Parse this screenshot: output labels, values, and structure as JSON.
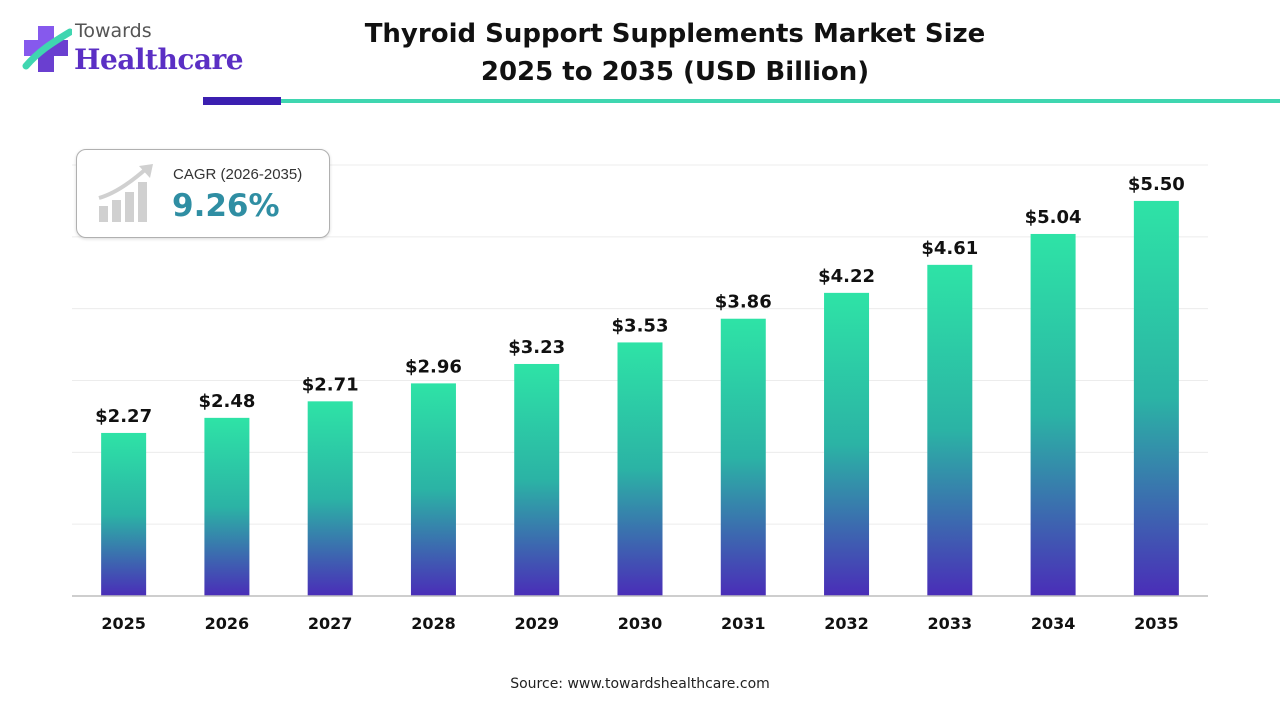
{
  "brand": {
    "line1": "Towards",
    "line2": "Healthcare"
  },
  "title_line1": "Thyroid Support Supplements Market Size",
  "title_line2": "2025 to 2035 (USD Billion)",
  "cagr": {
    "label": "CAGR (2026-2035)",
    "value": "9.26%"
  },
  "source": "Source: www.towardshealthcare.com",
  "colors": {
    "bar_top": "#2ee3a6",
    "bar_mid": "#2bb3a5",
    "bar_bottom": "#4a2db8",
    "brand_purple": "#5b2fc4",
    "accent_teal": "#3fd6b0",
    "cagr_text": "#2f8ea3"
  },
  "chart_data": {
    "type": "bar",
    "categories": [
      "2025",
      "2026",
      "2027",
      "2028",
      "2029",
      "2030",
      "2031",
      "2032",
      "2033",
      "2034",
      "2035"
    ],
    "values": [
      2.27,
      2.48,
      2.71,
      2.96,
      3.23,
      3.53,
      3.86,
      4.22,
      4.61,
      5.04,
      5.5
    ],
    "data_labels": [
      "$2.27",
      "$2.48",
      "$2.71",
      "$2.96",
      "$3.23",
      "$3.53",
      "$3.86",
      "$4.22",
      "$4.61",
      "$5.04",
      "$5.50"
    ],
    "title": "Thyroid Support Supplements Market Size 2025 to 2035 (USD Billion)",
    "xlabel": "",
    "ylabel": "",
    "ylim": [
      0,
      6
    ],
    "grid": true,
    "legend": "none"
  }
}
